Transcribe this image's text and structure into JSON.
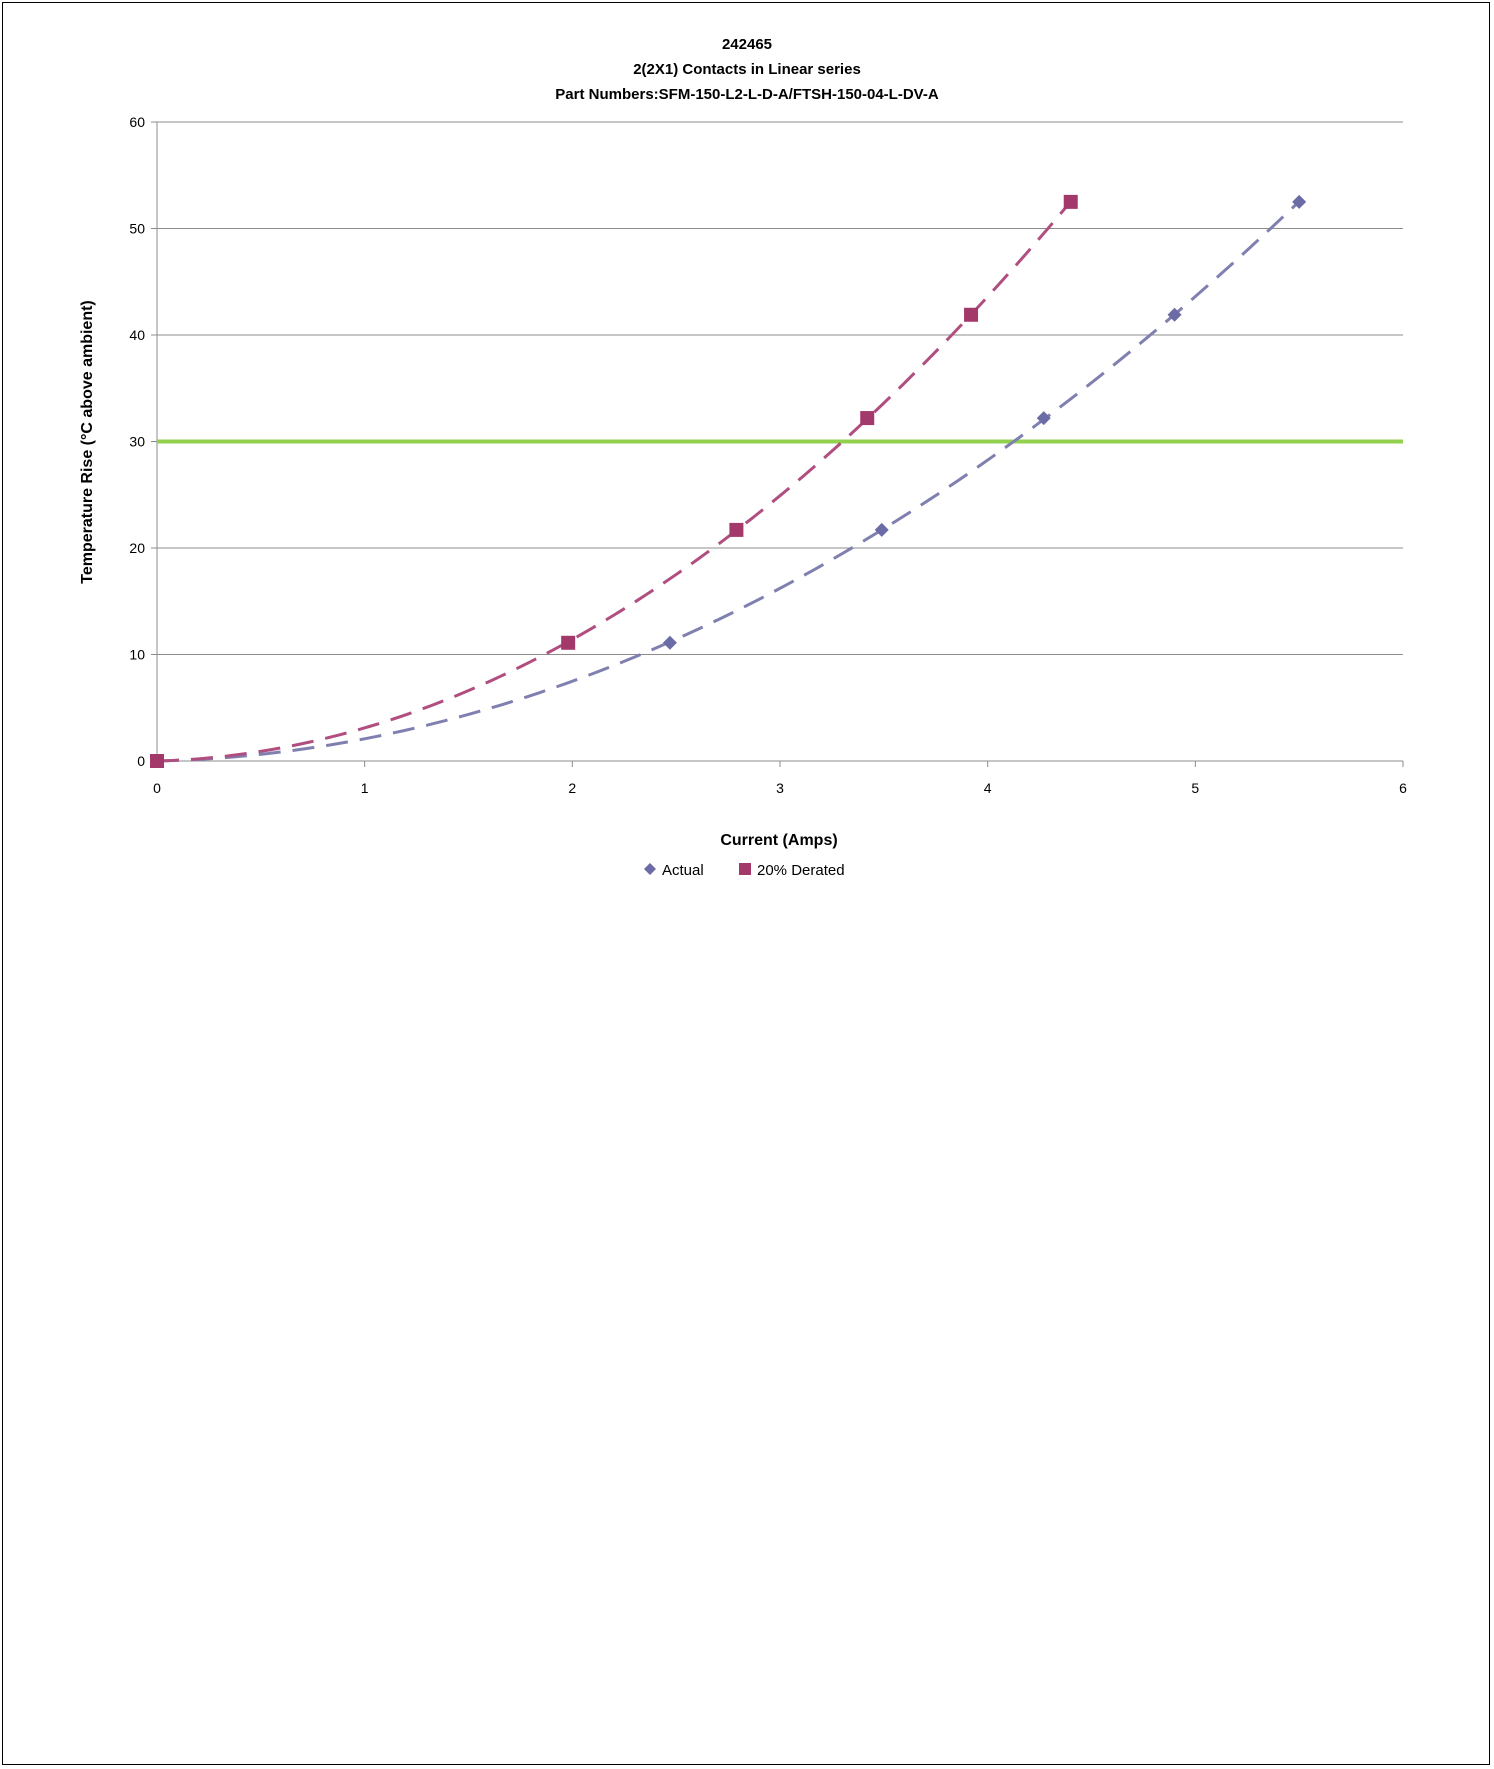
{
  "chart_data": {
    "type": "scatter",
    "title_lines": [
      "242465",
      "2(2X1) Contacts in Linear series",
      "Part Numbers:SFM-150-L2-L-D-A/FTSH-150-04-L-DV-A"
    ],
    "xlabel": "Current (Amps)",
    "ylabel": "Temperature Rise (°C above ambient)",
    "xlim": [
      0,
      6
    ],
    "ylim": [
      0,
      60
    ],
    "xticks": [
      0,
      1,
      2,
      3,
      4,
      5,
      6
    ],
    "yticks": [
      0,
      10,
      20,
      30,
      40,
      50,
      60
    ],
    "grid": "horizontal",
    "legend_position": "bottom",
    "threshold": {
      "y": 30,
      "color": "#92D050"
    },
    "series": [
      {
        "name": "Actual",
        "marker": "diamond",
        "color": "#6B6BA6",
        "trendline_color": "#8080B0",
        "x": [
          0,
          2.47,
          3.49,
          4.27,
          4.9,
          5.5
        ],
        "y": [
          0,
          11.1,
          21.7,
          32.2,
          41.9,
          52.5
        ]
      },
      {
        "name": "20% Derated",
        "marker": "square",
        "color": "#A3386A",
        "trendline_color": "#B04E80",
        "x": [
          0,
          1.98,
          2.79,
          3.42,
          3.92,
          4.4
        ],
        "y": [
          0,
          11.1,
          21.7,
          32.2,
          41.9,
          52.5
        ]
      }
    ]
  }
}
